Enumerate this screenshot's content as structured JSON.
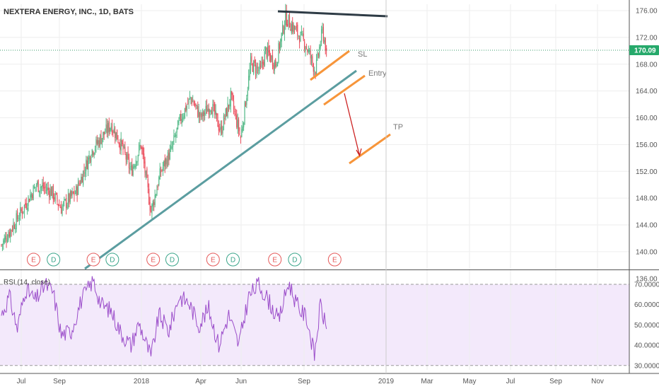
{
  "chart_data": [
    {
      "type": "candlestick",
      "title": "NEXTERA ENERGY, INC., 1D, BATS",
      "ylim": [
        136,
        177
      ],
      "price_ticks": [
        "176.00",
        "172.00",
        "168.00",
        "164.00",
        "160.00",
        "156.00",
        "152.00",
        "148.00",
        "144.00",
        "140.00",
        "136.00"
      ],
      "last_price": "170.09",
      "time_labels": [
        "Jul",
        "Sep",
        "2018",
        "Apr",
        "Jun",
        "Sep",
        "2019",
        "Mar",
        "May",
        "Jul",
        "Sep",
        "Nov"
      ],
      "grid": true,
      "close_anchors": [
        {
          "d": 0,
          "v": 141
        },
        {
          "d": 20,
          "v": 146
        },
        {
          "d": 35,
          "v": 150
        },
        {
          "d": 50,
          "v": 149
        },
        {
          "d": 60,
          "v": 146.5
        },
        {
          "d": 75,
          "v": 149
        },
        {
          "d": 90,
          "v": 155
        },
        {
          "d": 100,
          "v": 157
        },
        {
          "d": 110,
          "v": 159
        },
        {
          "d": 120,
          "v": 156
        },
        {
          "d": 130,
          "v": 152
        },
        {
          "d": 140,
          "v": 156
        },
        {
          "d": 150,
          "v": 146
        },
        {
          "d": 160,
          "v": 152
        },
        {
          "d": 170,
          "v": 155
        },
        {
          "d": 180,
          "v": 160
        },
        {
          "d": 190,
          "v": 163
        },
        {
          "d": 200,
          "v": 160
        },
        {
          "d": 210,
          "v": 162
        },
        {
          "d": 220,
          "v": 158
        },
        {
          "d": 230,
          "v": 163
        },
        {
          "d": 240,
          "v": 157
        },
        {
          "d": 250,
          "v": 168
        },
        {
          "d": 260,
          "v": 167
        },
        {
          "d": 265,
          "v": 170
        },
        {
          "d": 275,
          "v": 168
        },
        {
          "d": 285,
          "v": 175
        },
        {
          "d": 295,
          "v": 173
        },
        {
          "d": 305,
          "v": 171
        },
        {
          "d": 315,
          "v": 167
        },
        {
          "d": 322,
          "v": 173
        },
        {
          "d": 326,
          "v": 170.09
        }
      ],
      "events": [
        {
          "label": "E",
          "d": 28
        },
        {
          "label": "D",
          "d": 48
        },
        {
          "label": "E",
          "d": 88
        },
        {
          "label": "D",
          "d": 107
        },
        {
          "label": "E",
          "d": 148
        },
        {
          "label": "D",
          "d": 167
        },
        {
          "label": "E",
          "d": 208
        },
        {
          "label": "D",
          "d": 228
        },
        {
          "label": "E",
          "d": 270
        },
        {
          "label": "D",
          "d": 290
        },
        {
          "label": "E",
          "d": 330
        }
      ],
      "annotations": [
        {
          "label": "SL",
          "price": 169.8
        },
        {
          "label": "Entry",
          "price": 166.7
        },
        {
          "label": "TP",
          "price": 158.8
        }
      ]
    },
    {
      "type": "line",
      "title": "RSI (14, close)",
      "ylim": [
        28,
        74
      ],
      "ticks": [
        "70.0000",
        "60.0000",
        "50.0000",
        "40.0000",
        "30.0000"
      ],
      "overbought": 70,
      "oversold": 30,
      "last_value": 48,
      "rsi_anchors": [
        {
          "d": 0,
          "v": 55
        },
        {
          "d": 8,
          "v": 64
        },
        {
          "d": 16,
          "v": 48
        },
        {
          "d": 24,
          "v": 68
        },
        {
          "d": 34,
          "v": 62
        },
        {
          "d": 44,
          "v": 70
        },
        {
          "d": 52,
          "v": 66
        },
        {
          "d": 60,
          "v": 45
        },
        {
          "d": 70,
          "v": 47
        },
        {
          "d": 80,
          "v": 62
        },
        {
          "d": 92,
          "v": 72
        },
        {
          "d": 100,
          "v": 60
        },
        {
          "d": 110,
          "v": 57
        },
        {
          "d": 120,
          "v": 46
        },
        {
          "d": 130,
          "v": 40
        },
        {
          "d": 138,
          "v": 51
        },
        {
          "d": 150,
          "v": 34
        },
        {
          "d": 158,
          "v": 55
        },
        {
          "d": 168,
          "v": 47
        },
        {
          "d": 178,
          "v": 64
        },
        {
          "d": 188,
          "v": 61
        },
        {
          "d": 198,
          "v": 50
        },
        {
          "d": 208,
          "v": 58
        },
        {
          "d": 218,
          "v": 40
        },
        {
          "d": 228,
          "v": 55
        },
        {
          "d": 238,
          "v": 40
        },
        {
          "d": 248,
          "v": 64
        },
        {
          "d": 258,
          "v": 70
        },
        {
          "d": 268,
          "v": 62
        },
        {
          "d": 278,
          "v": 52
        },
        {
          "d": 288,
          "v": 71
        },
        {
          "d": 298,
          "v": 58
        },
        {
          "d": 306,
          "v": 54
        },
        {
          "d": 314,
          "v": 35
        },
        {
          "d": 320,
          "v": 60
        },
        {
          "d": 326,
          "v": 48
        }
      ]
    }
  ]
}
